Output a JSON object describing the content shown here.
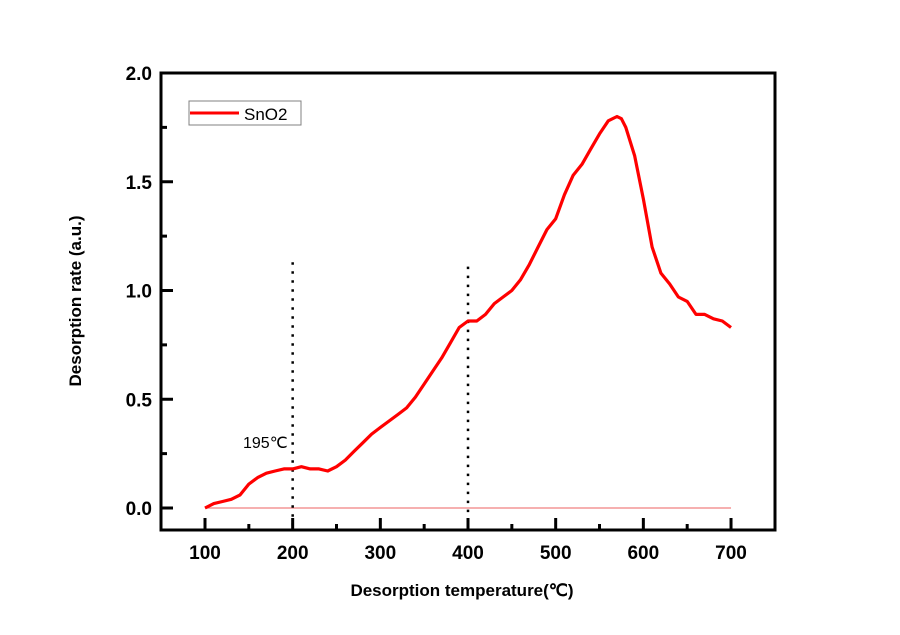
{
  "chart_data": {
    "type": "line",
    "title": "",
    "xlabel": "Desorption temperature(℃)",
    "ylabel": "Desorption rate (a.u.)",
    "xlim": [
      50,
      750
    ],
    "ylim": [
      -0.1,
      2.0
    ],
    "x_ticks": [
      "100",
      "200",
      "300",
      "400",
      "500",
      "600",
      "700"
    ],
    "y_ticks": [
      "0.0",
      "0.5",
      "1.0",
      "1.5",
      "2.0"
    ],
    "grid": false,
    "legend": {
      "position": "top-left",
      "entries": [
        "SnO2"
      ]
    },
    "series": [
      {
        "name": "SnO2",
        "color": "#ff0000",
        "x": [
          100,
          110,
          120,
          130,
          140,
          150,
          160,
          170,
          180,
          190,
          200,
          210,
          220,
          230,
          240,
          250,
          260,
          270,
          280,
          290,
          300,
          310,
          320,
          330,
          340,
          350,
          360,
          370,
          380,
          390,
          400,
          410,
          420,
          430,
          440,
          450,
          460,
          470,
          480,
          490,
          500,
          510,
          520,
          530,
          540,
          550,
          560,
          570,
          575,
          580,
          590,
          600,
          610,
          620,
          630,
          640,
          650,
          660,
          670,
          680,
          690,
          700
        ],
        "y": [
          0.0,
          0.02,
          0.03,
          0.04,
          0.06,
          0.11,
          0.14,
          0.16,
          0.17,
          0.18,
          0.18,
          0.19,
          0.18,
          0.18,
          0.17,
          0.19,
          0.22,
          0.26,
          0.3,
          0.34,
          0.37,
          0.4,
          0.43,
          0.46,
          0.51,
          0.57,
          0.63,
          0.69,
          0.76,
          0.83,
          0.86,
          0.86,
          0.89,
          0.94,
          0.97,
          1.0,
          1.05,
          1.12,
          1.2,
          1.28,
          1.33,
          1.44,
          1.53,
          1.58,
          1.65,
          1.72,
          1.78,
          1.8,
          1.79,
          1.75,
          1.62,
          1.42,
          1.2,
          1.08,
          1.03,
          0.97,
          0.95,
          0.89,
          0.89,
          0.87,
          0.86,
          0.83
        ]
      },
      {
        "name": "baseline",
        "color": "#f08080",
        "x": [
          100,
          700
        ],
        "y": [
          0,
          0
        ]
      }
    ],
    "reference_lines": [
      {
        "x": 200,
        "y_top": 1.13,
        "style": "dotted",
        "color": "#000000"
      },
      {
        "x": 400,
        "y_top": 1.11,
        "style": "dotted",
        "color": "#000000"
      }
    ],
    "annotations": [
      {
        "text": "195℃",
        "x": 195,
        "y": 0.3
      }
    ]
  }
}
